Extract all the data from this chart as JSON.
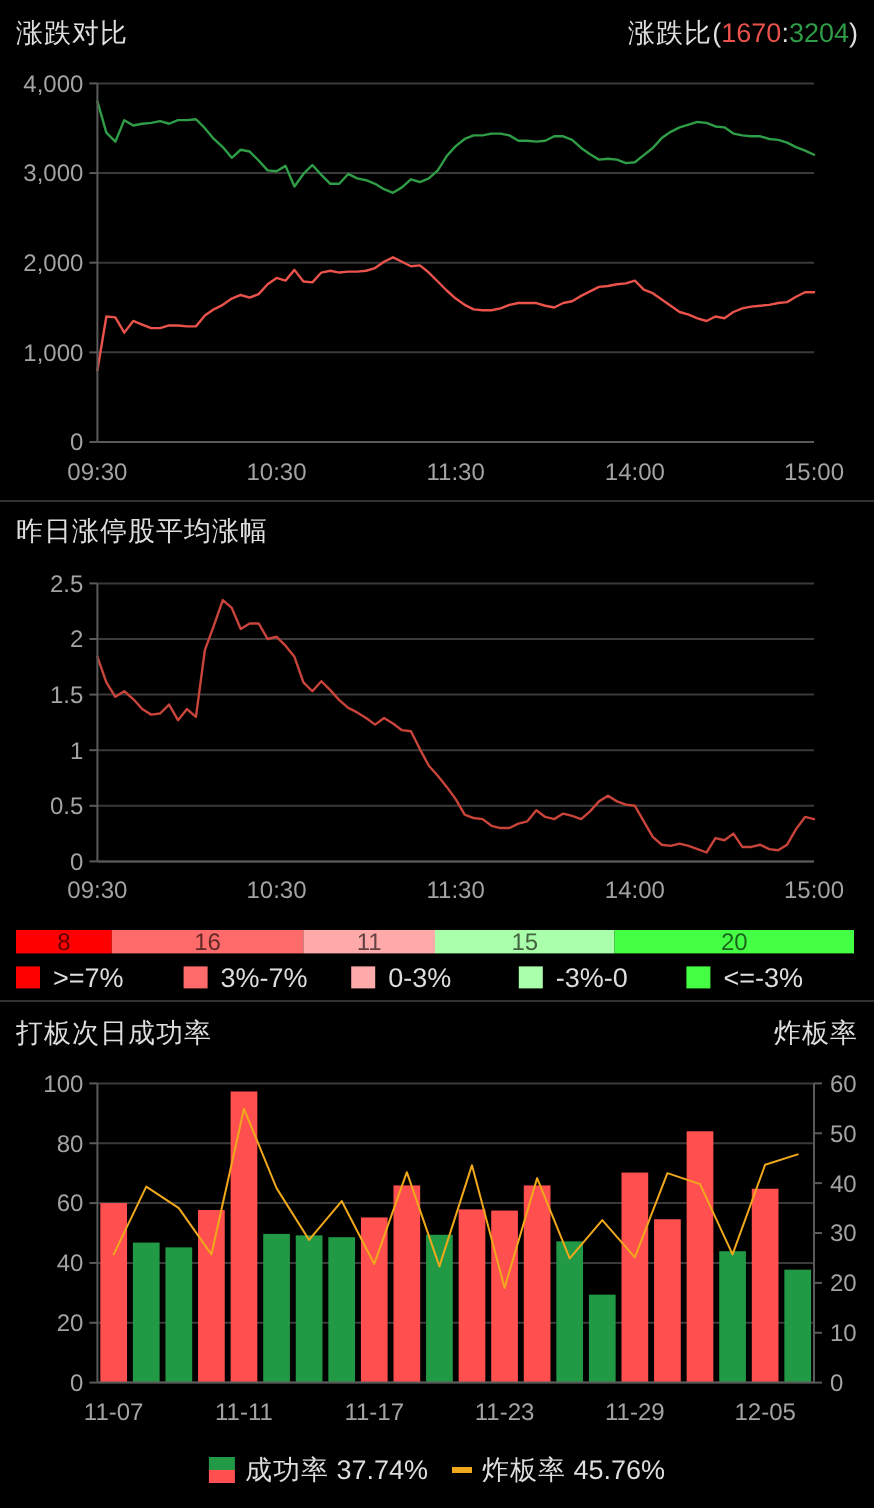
{
  "chart_data": [
    {
      "type": "line",
      "title": "涨跌对比",
      "subtitle": "涨跌比(1670:3204)",
      "categories": [
        "09:30",
        null,
        null,
        null,
        null,
        null,
        null,
        null,
        null,
        null,
        null,
        null,
        null,
        null,
        null,
        null,
        null,
        null,
        null,
        null,
        "10:30",
        null,
        null,
        null,
        null,
        null,
        null,
        null,
        null,
        null,
        null,
        null,
        null,
        null,
        null,
        null,
        null,
        null,
        null,
        null,
        "11:30",
        null,
        null,
        null,
        null,
        null,
        null,
        null,
        null,
        null,
        null,
        null,
        null,
        null,
        null,
        null,
        null,
        null,
        null,
        null,
        "14:00",
        null,
        null,
        null,
        null,
        null,
        null,
        null,
        null,
        null,
        null,
        null,
        null,
        null,
        null,
        null,
        null,
        null,
        null,
        null,
        "15:00"
      ],
      "ylim": [
        0,
        4000
      ],
      "yticks": [
        0,
        {
          "value": 1000,
          "label": "1,000"
        },
        {
          "value": 2000,
          "label": "2,000"
        },
        {
          "value": 3000,
          "label": "3,000"
        },
        {
          "value": 4000,
          "label": "4,000"
        }
      ],
      "grid": "y",
      "series": [
        {
          "color": "#e9534c",
          "values": [
            800,
            1400,
            1390,
            1220,
            1350,
            1310,
            1270,
            1270,
            1300,
            1300,
            1290,
            1290,
            1410,
            1480,
            1530,
            1600,
            1640,
            1610,
            1650,
            1760,
            1830,
            1800,
            1920,
            1790,
            1780,
            1890,
            1910,
            1890,
            1900,
            1900,
            1910,
            1940,
            2010,
            2060,
            2010,
            1960,
            1970,
            1890,
            1790,
            1690,
            1600,
            1530,
            1480,
            1470,
            1470,
            1490,
            1530,
            1550,
            1550,
            1550,
            1520,
            1500,
            1550,
            1570,
            1630,
            1680,
            1730,
            1740,
            1760,
            1770,
            1800,
            1700,
            1660,
            1590,
            1520,
            1450,
            1420,
            1380,
            1350,
            1400,
            1380,
            1450,
            1490,
            1510,
            1520,
            1530,
            1550,
            1560,
            1620,
            1670,
            1670
          ]
        },
        {
          "color": "#2f9c47",
          "values": [
            3800,
            3450,
            3350,
            3590,
            3530,
            3550,
            3560,
            3580,
            3550,
            3590,
            3590,
            3600,
            3500,
            3380,
            3290,
            3170,
            3260,
            3240,
            3140,
            3030,
            3020,
            3080,
            2850,
            2990,
            3090,
            2980,
            2880,
            2880,
            2990,
            2940,
            2920,
            2880,
            2820,
            2780,
            2840,
            2930,
            2900,
            2940,
            3030,
            3190,
            3300,
            3380,
            3420,
            3420,
            3440,
            3440,
            3420,
            3360,
            3360,
            3350,
            3360,
            3410,
            3410,
            3370,
            3280,
            3210,
            3150,
            3160,
            3150,
            3110,
            3120,
            3200,
            3280,
            3390,
            3460,
            3510,
            3540,
            3570,
            3560,
            3520,
            3510,
            3440,
            3420,
            3410,
            3410,
            3380,
            3370,
            3340,
            3290,
            3250,
            3204
          ]
        }
      ]
    },
    {
      "type": "line",
      "title": "昨日涨停股平均涨幅",
      "categories": [
        "09:30",
        null,
        null,
        null,
        null,
        null,
        null,
        null,
        null,
        null,
        null,
        null,
        null,
        null,
        null,
        null,
        null,
        null,
        null,
        null,
        "10:30",
        null,
        null,
        null,
        null,
        null,
        null,
        null,
        null,
        null,
        null,
        null,
        null,
        null,
        null,
        null,
        null,
        null,
        null,
        null,
        "11:30",
        null,
        null,
        null,
        null,
        null,
        null,
        null,
        null,
        null,
        null,
        null,
        null,
        null,
        null,
        null,
        null,
        null,
        null,
        null,
        "14:00",
        null,
        null,
        null,
        null,
        null,
        null,
        null,
        null,
        null,
        null,
        null,
        null,
        null,
        null,
        null,
        null,
        null,
        null,
        null,
        "15:00"
      ],
      "ylim": [
        0,
        2.5
      ],
      "yticks": [
        0,
        0.5,
        1,
        1.5,
        2,
        2.5
      ],
      "grid": "y",
      "series": [
        {
          "color": "#c9443a",
          "values": [
            1.84,
            1.61,
            1.48,
            1.53,
            1.46,
            1.37,
            1.32,
            1.33,
            1.41,
            1.27,
            1.37,
            1.3,
            1.9,
            2.12,
            2.35,
            2.28,
            2.09,
            2.14,
            2.14,
            2.0,
            2.02,
            1.94,
            1.84,
            1.61,
            1.53,
            1.62,
            1.54,
            1.45,
            1.38,
            1.34,
            1.29,
            1.23,
            1.29,
            1.24,
            1.18,
            1.17,
            1.01,
            0.86,
            0.77,
            0.67,
            0.56,
            0.42,
            0.39,
            0.38,
            0.32,
            0.3,
            0.3,
            0.34,
            0.36,
            0.46,
            0.4,
            0.38,
            0.43,
            0.41,
            0.38,
            0.45,
            0.54,
            0.59,
            0.54,
            0.51,
            0.5,
            0.36,
            0.22,
            0.15,
            0.14,
            0.16,
            0.14,
            0.11,
            0.08,
            0.21,
            0.19,
            0.25,
            0.13,
            0.13,
            0.15,
            0.11,
            0.1,
            0.15,
            0.29,
            0.4,
            0.38
          ]
        }
      ]
    },
    {
      "type": "bar",
      "orientation": "horizontal",
      "stacked": true,
      "categories": [
        null
      ],
      "data_labels": true,
      "legend": "bottom",
      "series": [
        {
          "name": ">=7%",
          "color": "#ff0000",
          "values": [
            8
          ]
        },
        {
          "name": "3%-7%",
          "color": "#ff6b6b",
          "values": [
            16
          ]
        },
        {
          "name": "0-3%",
          "color": "#ffaaaa",
          "values": [
            11
          ]
        },
        {
          "name": "-3%-0",
          "color": "#aaffaa",
          "values": [
            15
          ]
        },
        {
          "name": "<=-3%",
          "color": "#44ff44",
          "values": [
            20
          ]
        }
      ]
    },
    {
      "type": "bar",
      "title": "打板次日成功率",
      "y2label": "炸板率",
      "categories": [
        "11-07",
        null,
        null,
        null,
        "11-11",
        null,
        null,
        null,
        "11-17",
        null,
        null,
        null,
        "11-23",
        null,
        null,
        null,
        "11-29",
        null,
        null,
        null,
        "12-05",
        null
      ],
      "ylim": [
        0,
        100
      ],
      "yticks": [
        0,
        20,
        40,
        60,
        80,
        100
      ],
      "y2lim": [
        0,
        60
      ],
      "y2ticks": [
        0,
        10,
        20,
        30,
        40,
        50,
        60
      ],
      "grid": "y",
      "legend": "bottom",
      "series": [
        {
          "name": "成功率 37.74%",
          "colors": [
            "#ff4f4f",
            "#229a45",
            "#229a45",
            "#ff4f4f",
            "#ff4f4f",
            "#229a45",
            "#229a45",
            "#229a45",
            "#ff4f4f",
            "#ff4f4f",
            "#229a45",
            "#ff4f4f",
            "#ff4f4f",
            "#ff4f4f",
            "#229a45",
            "#229a45",
            "#ff4f4f",
            "#ff4f4f",
            "#ff4f4f",
            "#229a45",
            "#ff4f4f",
            "#229a45"
          ],
          "values": [
            60,
            46.8,
            45.2,
            57.7,
            97.3,
            49.7,
            49.2,
            48.6,
            55.2,
            65.9,
            49.4,
            57.9,
            57.5,
            65.9,
            47.2,
            29.4,
            70.2,
            54.6,
            84,
            43.9,
            64.8,
            37.74
          ]
        },
        {
          "type": "line",
          "name": "炸板率 45.76%",
          "color": "#f0a81c",
          "axis": "y2",
          "values": [
            25.7,
            39.3,
            35,
            25.7,
            54.9,
            39,
            28.6,
            36.4,
            23.8,
            42.2,
            23.3,
            43.6,
            19,
            41,
            24.9,
            32.6,
            25.1,
            42,
            39.8,
            25.7,
            43.7,
            45.76
          ]
        }
      ]
    }
  ]
}
